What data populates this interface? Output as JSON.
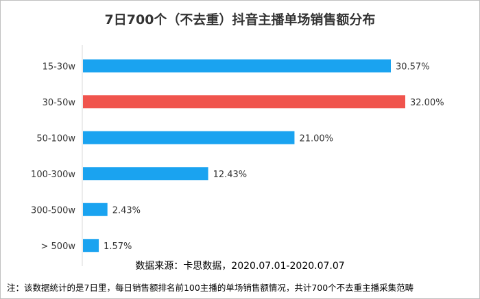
{
  "chart_data": {
    "type": "bar",
    "orientation": "horizontal",
    "title": "7日700个（不去重）抖音主播单场销售额分布",
    "categories": [
      "15-30w",
      "30-50w",
      "50-100w",
      "100-300w",
      "300-500w",
      "> 500w"
    ],
    "values": [
      30.57,
      32.0,
      21.0,
      12.43,
      2.43,
      1.57
    ],
    "data_labels": [
      "30.57%",
      "32.00%",
      "21.00%",
      "12.43%",
      "2.43%",
      "1.57%"
    ],
    "xlim": [
      0,
      32
    ],
    "grid": false,
    "colors": {
      "default": "#1aa3f0",
      "highlight": "#f0544d"
    },
    "highlight_index": 1
  },
  "footer": {
    "source": "数据来源：卡思数据，2020.07.01-2020.07.07",
    "note": "注：该数据统计的是7日里，每日销售额排名前100主播的单场销售额情况，共计700个不去重主播采集范畴"
  }
}
